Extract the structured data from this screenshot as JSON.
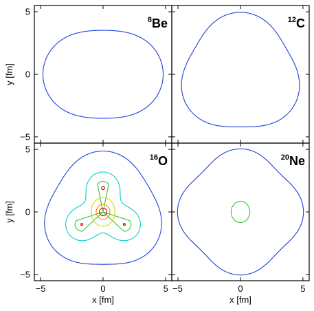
{
  "chart_data": [
    {
      "type": "contour",
      "panel": "top-left",
      "nucleus": {
        "mass_number": "8",
        "element": "Be"
      },
      "xlim": [
        -5.5,
        5.5
      ],
      "ylim": [
        -5.5,
        5.5
      ],
      "xlabel": "",
      "ylabel": "y [fm]",
      "xticks": [],
      "yticks": [
        "5",
        "0",
        "-5"
      ],
      "centers": [
        [
          -1.6,
          0
        ],
        [
          1.6,
          0
        ]
      ],
      "levels": [
        {
          "color": "#1f3fdc",
          "size": 2.6,
          "pinch": 0.22
        },
        {
          "color": "#00d0c8",
          "size": 1.25,
          "pinch": 1
        },
        {
          "color": "#2ec82e",
          "size": 0.85,
          "pinch": 1
        },
        {
          "color": "#e0d000",
          "size": 0.55,
          "pinch": 1
        },
        {
          "color": "#ff8c00",
          "size": 0.35,
          "pinch": 1
        },
        {
          "color": "#dd0000",
          "size": 0.2,
          "pinch": 1
        }
      ],
      "inner_features": []
    },
    {
      "type": "contour",
      "panel": "top-right",
      "nucleus": {
        "mass_number": "12",
        "element": "C"
      },
      "xlim": [
        -5.5,
        5.5
      ],
      "ylim": [
        -5.5,
        5.5
      ],
      "xlabel": "",
      "ylabel": "",
      "xticks": [],
      "yticks": [],
      "centers": [
        [
          0,
          1.9
        ],
        [
          -1.65,
          -0.95
        ],
        [
          1.65,
          -0.95
        ]
      ],
      "levels": [
        {
          "color": "#1f3fdc",
          "size": 2.4,
          "pinch": 0.2
        },
        {
          "color": "#00d0c8",
          "size": 1.25,
          "pinch": 1
        },
        {
          "color": "#2ec82e",
          "size": 0.85,
          "pinch": 1
        },
        {
          "color": "#e0d000",
          "size": 0.55,
          "pinch": 1
        },
        {
          "color": "#ff8c00",
          "size": 0.35,
          "pinch": 1
        },
        {
          "color": "#dd0000",
          "size": 0.2,
          "pinch": 1
        }
      ],
      "inner_features": []
    },
    {
      "type": "contour",
      "panel": "bottom-left",
      "nucleus": {
        "mass_number": "16",
        "element": "O"
      },
      "xlim": [
        -5.5,
        5.5
      ],
      "ylim": [
        -5.5,
        5.5
      ],
      "xlabel": "x [fm]",
      "ylabel": "y [fm]",
      "xticks": [
        "-5",
        "0",
        "5"
      ],
      "yticks": [
        "5",
        "0",
        "-5"
      ],
      "centers": [
        [
          0,
          1.9
        ],
        [
          -1.7,
          -1.0
        ],
        [
          1.7,
          -1.0
        ]
      ],
      "levels": [
        {
          "color": "#1f3fdc",
          "size": 2.5,
          "pinch": 0.25
        },
        {
          "color": "#00d0c8",
          "size": 1.55,
          "pinch": 0.5
        },
        {
          "color": "#2ec82e",
          "size": 1.15,
          "pinch": 0.8
        },
        {
          "color": "#e0d000",
          "size": 0.8,
          "pinch": 1
        }
      ],
      "inner_features": [
        {
          "type": "loop",
          "cx": 0,
          "cy": 0,
          "rx": 0.95,
          "ry": 1.15,
          "color": "#e0d000"
        },
        {
          "type": "loop",
          "cx": 0,
          "cy": 0,
          "rx": 0.55,
          "ry": 0.6,
          "color": "#ff8c00"
        },
        {
          "type": "loop",
          "cx": 0,
          "cy": 0,
          "rx": 0.3,
          "ry": 0.3,
          "color": "#dd0000"
        },
        {
          "type": "loop",
          "cx": 0,
          "cy": 1.9,
          "rx": 0.12,
          "ry": 0.12,
          "color": "#dd0000"
        },
        {
          "type": "loop",
          "cx": -1.7,
          "cy": -1.0,
          "rx": 0.08,
          "ry": 0.08,
          "color": "#dd0000"
        },
        {
          "type": "loop",
          "cx": 1.7,
          "cy": -1.0,
          "rx": 0.08,
          "ry": 0.08,
          "color": "#dd0000"
        }
      ]
    },
    {
      "type": "contour",
      "panel": "bottom-right",
      "nucleus": {
        "mass_number": "20",
        "element": "Ne"
      },
      "xlim": [
        -5.5,
        5.5
      ],
      "ylim": [
        -5.5,
        5.5
      ],
      "xlabel": "x [fm]",
      "ylabel": "",
      "xticks": [
        "-5",
        "0",
        "5"
      ],
      "yticks": [],
      "centers": [
        [
          0,
          2.5
        ],
        [
          -2.5,
          0
        ],
        [
          2.5,
          0
        ],
        [
          0,
          -2.5
        ]
      ],
      "levels": [
        {
          "color": "#1f3fdc",
          "size": 2.3,
          "pinch": 0.3
        },
        {
          "color": "#00d0c8",
          "size": 1.25,
          "pinch": 1
        },
        {
          "color": "#2ec82e",
          "size": 0.85,
          "pinch": 1
        },
        {
          "color": "#e0d000",
          "size": 0.55,
          "pinch": 1
        },
        {
          "color": "#ff8c00",
          "size": 0.35,
          "pinch": 1
        },
        {
          "color": "#dd0000",
          "size": 0.2,
          "pinch": 1
        }
      ],
      "inner_features": [
        {
          "type": "loop",
          "cx": 0,
          "cy": 0,
          "rx": 0.75,
          "ry": 0.85,
          "color": "#2ec82e"
        }
      ]
    }
  ]
}
